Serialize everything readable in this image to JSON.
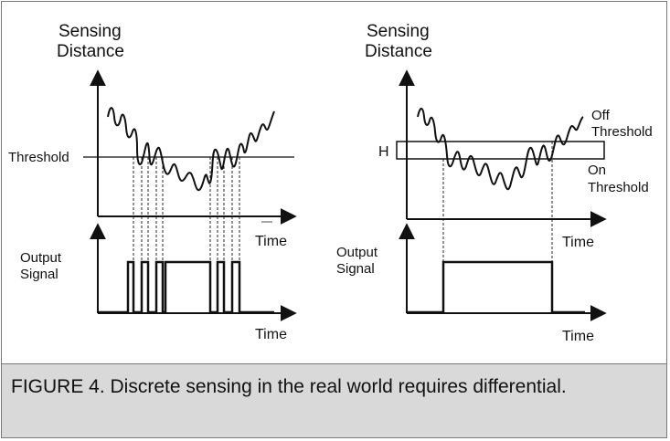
{
  "left_panel": {
    "y_label_line1": "Sensing",
    "y_label_line2": "Distance",
    "threshold_label": "Threshold",
    "x_label_top": "Time",
    "output_label_line1": "Output",
    "output_label_line2": "Signal",
    "x_label_bottom": "Time"
  },
  "right_panel": {
    "y_label_line1": "Sensing",
    "y_label_line2": "Distance",
    "h_label": "H",
    "off_label_line1": "Off",
    "off_label_line2": "Threshold",
    "on_label_line1": "On",
    "on_label_line2": "Threshold",
    "x_label_top": "Time",
    "output_label_line1": "Output",
    "output_label_line2": "Signal",
    "x_label_bottom": "Time"
  },
  "caption": "FIGURE 4. Discrete sensing in the real world requires differential.",
  "colors": {
    "ink": "#111111",
    "caption_bg": "#d9d9d9",
    "border": "#7a7a7a"
  }
}
